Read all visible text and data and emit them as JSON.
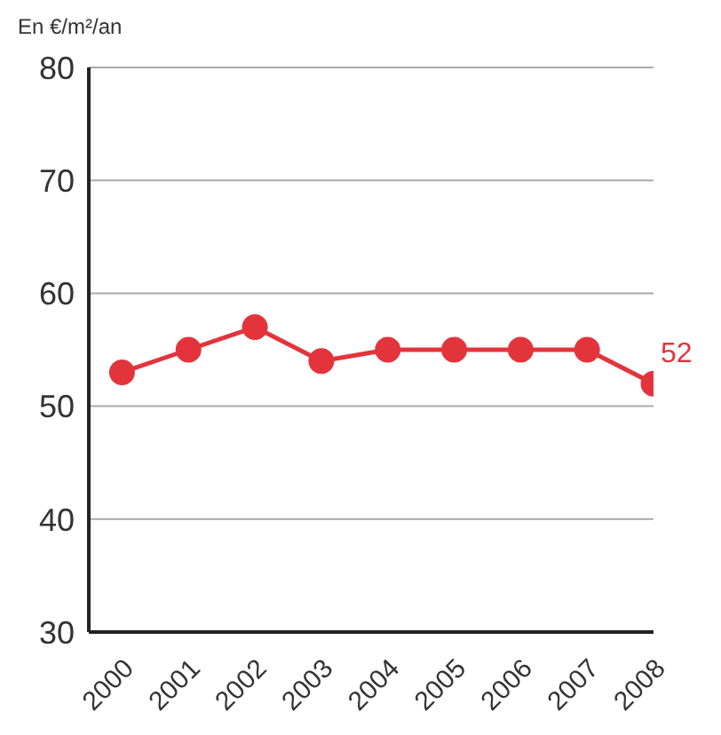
{
  "chart_data": {
    "type": "line",
    "ylabel": "En €/m²/an",
    "categories": [
      "2000",
      "2001",
      "2002",
      "2003",
      "2004",
      "2005",
      "2006",
      "2007",
      "2008"
    ],
    "series": [
      {
        "color": "#e3343c",
        "values": [
          53,
          55,
          57,
          54,
          55,
          55,
          55,
          55,
          52
        ],
        "value_labels": [
          null,
          null,
          null,
          null,
          null,
          null,
          null,
          null,
          "52"
        ]
      }
    ],
    "ylim": [
      30,
      80
    ],
    "yticks": [
      30,
      40,
      50,
      60,
      70,
      80
    ],
    "grid": "y",
    "marker": "circle",
    "line_style": "solid",
    "legend": false
  }
}
